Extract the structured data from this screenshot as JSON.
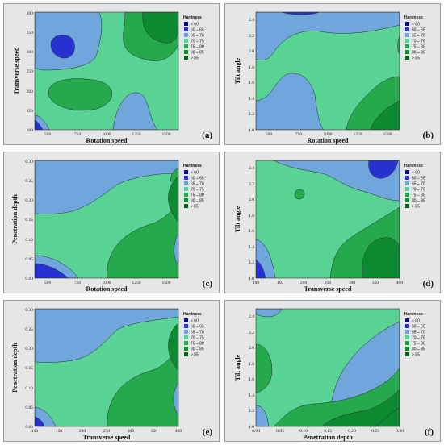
{
  "legend": {
    "title": "Hardness",
    "items": [
      {
        "label": "< 60",
        "color": "#0a0a8c"
      },
      {
        "label": "60 – 65",
        "color": "#2832d0"
      },
      {
        "label": "65 – 70",
        "color": "#6fa6dc"
      },
      {
        "label": "70 – 75",
        "color": "#59d394"
      },
      {
        "label": "75 – 80",
        "color": "#26a84c"
      },
      {
        "label": "80 – 85",
        "color": "#0e8a32"
      },
      {
        "label": "> 85",
        "color": "#055e1c"
      }
    ]
  },
  "chart_data": [
    {
      "type": "contour",
      "letter": "(a)",
      "xlabel": "Rotation speed",
      "ylabel": "Transverse speed",
      "xlim": [
        400,
        1600
      ],
      "ylim": [
        100,
        400
      ],
      "xticks": [
        500,
        750,
        1000,
        1250,
        1500
      ],
      "yticks": [
        100,
        150,
        200,
        250,
        300,
        350,
        400
      ],
      "xtick_labels": [
        "500",
        "750",
        "1000",
        "1250",
        "1500"
      ],
      "ytick_labels": [
        "100",
        "150",
        "200",
        "250",
        "300",
        "350",
        "400"
      ],
      "legend_position": "top-right-outside"
    },
    {
      "type": "contour",
      "letter": "(b)",
      "xlabel": "Rotation speed",
      "ylabel": "Tilt angle",
      "xlim": [
        400,
        1600
      ],
      "ylim": [
        1.0,
        2.5
      ],
      "xticks": [
        500,
        750,
        1000,
        1250,
        1500
      ],
      "yticks": [
        1.0,
        1.2,
        1.4,
        1.6,
        1.8,
        2.0,
        2.2,
        2.4
      ],
      "xtick_labels": [
        "500",
        "750",
        "1000",
        "1250",
        "1500"
      ],
      "ytick_labels": [
        "1.0",
        "1.2",
        "1.4",
        "1.6",
        "1.8",
        "2.0",
        "2.2",
        "2.4"
      ],
      "legend_position": "top-right-outside"
    },
    {
      "type": "contour",
      "letter": "(c)",
      "xlabel": "Rotation speed",
      "ylabel": "Penetration depth",
      "xlim": [
        400,
        1600
      ],
      "ylim": [
        0.0,
        0.3
      ],
      "xticks": [
        500,
        750,
        1000,
        1250,
        1500
      ],
      "yticks": [
        0.0,
        0.05,
        0.1,
        0.15,
        0.2,
        0.25,
        0.3
      ],
      "xtick_labels": [
        "500",
        "750",
        "1000",
        "1250",
        "1500"
      ],
      "ytick_labels": [
        "0.00",
        "0.05",
        "0.10",
        "0.15",
        "0.20",
        "0.25",
        "0.30"
      ],
      "legend_position": "top-right-outside"
    },
    {
      "type": "contour",
      "letter": "(d)",
      "xlabel": "Transverse speed",
      "ylabel": "Tilt angle",
      "xlim": [
        100,
        400
      ],
      "ylim": [
        1.0,
        2.5
      ],
      "xticks": [
        100,
        150,
        200,
        250,
        300,
        350,
        400
      ],
      "yticks": [
        1.0,
        1.2,
        1.4,
        1.6,
        1.8,
        2.0,
        2.2,
        2.4
      ],
      "xtick_labels": [
        "100",
        "150",
        "200",
        "250",
        "300",
        "350",
        "400"
      ],
      "ytick_labels": [
        "1.0",
        "1.2",
        "1.4",
        "1.6",
        "1.8",
        "2.0",
        "2.2",
        "2.4"
      ],
      "legend_position": "top-right-outside"
    },
    {
      "type": "contour",
      "letter": "(e)",
      "xlabel": "Transverse speed",
      "ylabel": "Penetration depth",
      "xlim": [
        100,
        400
      ],
      "ylim": [
        0.0,
        0.3
      ],
      "xticks": [
        100,
        150,
        200,
        250,
        300,
        350,
        400
      ],
      "yticks": [
        0.0,
        0.05,
        0.1,
        0.15,
        0.2,
        0.25,
        0.3
      ],
      "xtick_labels": [
        "100",
        "150",
        "200",
        "250",
        "300",
        "350",
        "400"
      ],
      "ytick_labels": [
        "0.00",
        "0.05",
        "0.10",
        "0.15",
        "0.20",
        "0.25",
        "0.30"
      ],
      "legend_position": "top-right-outside"
    },
    {
      "type": "contour",
      "letter": "(f)",
      "xlabel": "Penetration depth",
      "ylabel": "Tilt angle",
      "xlim": [
        0.0,
        0.3
      ],
      "ylim": [
        1.0,
        2.5
      ],
      "xticks": [
        0.0,
        0.05,
        0.1,
        0.15,
        0.2,
        0.25,
        0.3
      ],
      "yticks": [
        1.0,
        1.2,
        1.4,
        1.6,
        1.8,
        2.0,
        2.2,
        2.4
      ],
      "xtick_labels": [
        "0.00",
        "0.05",
        "0.10",
        "0.15",
        "0.20",
        "0.25",
        "0.30"
      ],
      "ytick_labels": [
        "1.0",
        "1.2",
        "1.4",
        "1.6",
        "1.8",
        "2.0",
        "2.2",
        "2.4"
      ],
      "legend_position": "top-right-outside"
    }
  ]
}
